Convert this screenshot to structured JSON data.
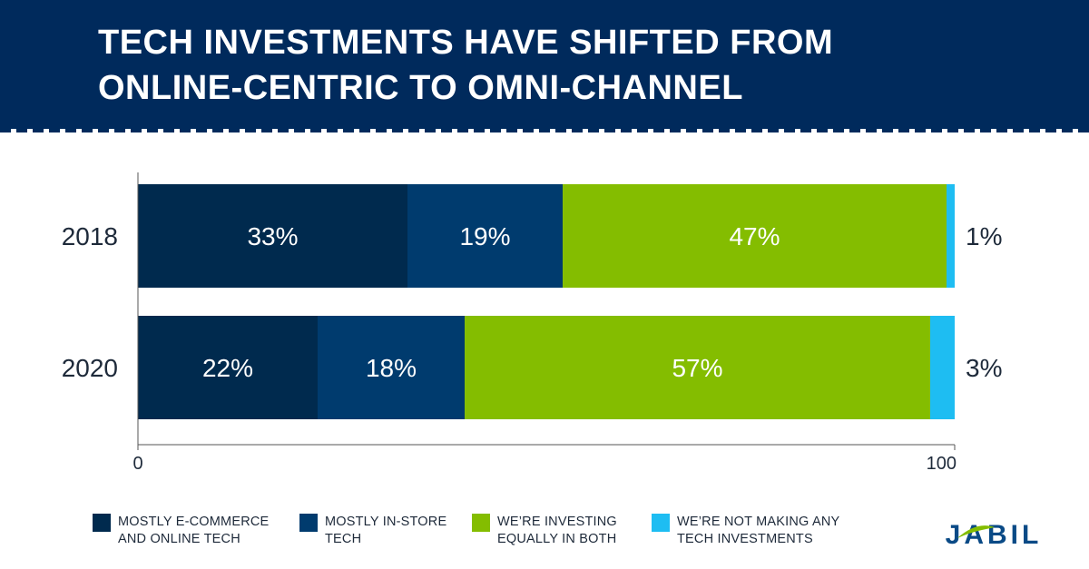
{
  "header": {
    "title_line1": "TECH INVESTMENTS HAVE SHIFTED FROM",
    "title_line2": "ONLINE-CENTRIC TO OMNI-CHANNEL"
  },
  "colors": {
    "header_bg": "#002a5c",
    "ecommerce": "#002a4e",
    "instore": "#003b6e",
    "both": "#84bd00",
    "none": "#1ebdf2",
    "logo_blue": "#0a4a86",
    "logo_green": "#84bd00"
  },
  "chart_data": {
    "type": "bar",
    "orientation": "horizontal",
    "stacked": true,
    "categories": [
      "2018",
      "2020"
    ],
    "series": [
      {
        "name": "MOSTLY E-COMMERCE AND ONLINE TECH",
        "values": [
          33,
          22
        ],
        "labels": [
          "33%",
          "22%"
        ]
      },
      {
        "name": "MOSTLY IN-STORE TECH",
        "values": [
          19,
          18
        ],
        "labels": [
          "19%",
          "18%"
        ]
      },
      {
        "name": "WE'RE INVESTING EQUALLY IN BOTH",
        "values": [
          47,
          57
        ],
        "labels": [
          "47%",
          "57%"
        ]
      },
      {
        "name": "WE'RE NOT MAKING ANY TECH INVESTMENTS",
        "values": [
          1,
          3
        ],
        "labels": [
          "1%",
          "3%"
        ]
      }
    ],
    "xlim": [
      0,
      100
    ],
    "xticks": [
      "0",
      "100"
    ],
    "grid": false,
    "legend_position": "bottom"
  },
  "legend": [
    {
      "label": "MOSTLY E-COMMERCE\nAND ONLINE TECH"
    },
    {
      "label": "MOSTLY IN-STORE\nTECH"
    },
    {
      "label": "WE’RE INVESTING\nEQUALLY IN BOTH"
    },
    {
      "label": "WE’RE NOT MAKING ANY\nTECH INVESTMENTS"
    }
  ],
  "logo": {
    "text": "JABIL"
  }
}
